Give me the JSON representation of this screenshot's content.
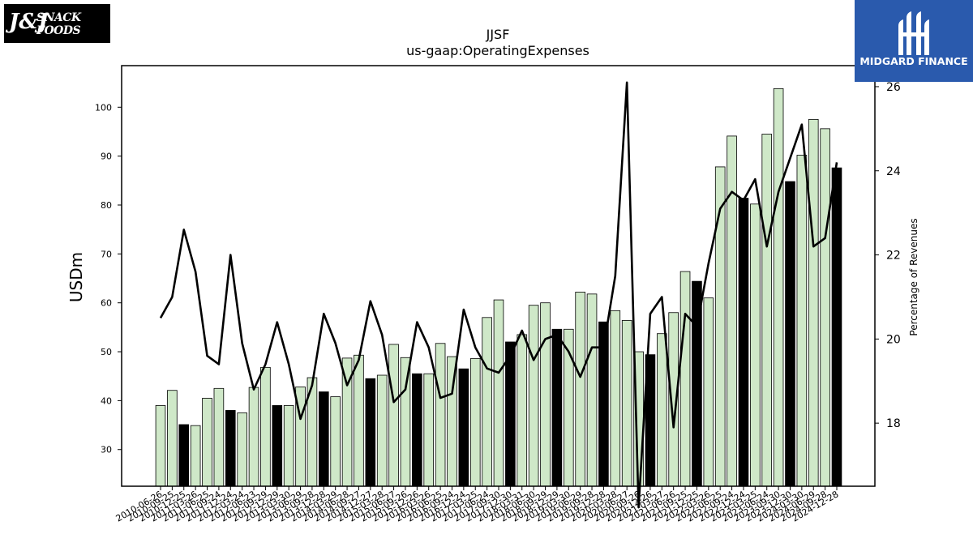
{
  "logos": {
    "left_brand": "SNACK FOODS",
    "left_mark": "J&J",
    "right_name": "MIDGARD FINANCE"
  },
  "colors": {
    "bar_light": "#cfe8c8",
    "bar_dark": "#000000",
    "line": "#000000",
    "logo_right_bg": "#2a5aad"
  },
  "chart_data": {
    "type": "bar",
    "title": "JJSF",
    "subtitle": "us-gaap:OperatingExpenses",
    "ylabel": "USDm",
    "y2label": "Percentage of Revenues",
    "ylim": [
      22.5,
      108.5
    ],
    "y2lim": [
      16.5,
      26.5
    ],
    "yticks": [
      30,
      40,
      50,
      60,
      70,
      80,
      90,
      100
    ],
    "y2ticks": [
      18,
      20,
      22,
      24,
      26
    ],
    "grid": false,
    "categories": [
      "2010-06-26",
      "2010-09-25",
      "2010-12-25",
      "2011-03-26",
      "2011-06-25",
      "2011-09-24",
      "2011-12-24",
      "2012-03-24",
      "2012-06-23",
      "2012-09-29",
      "2012-12-29",
      "2013-03-30",
      "2013-06-29",
      "2013-09-28",
      "2013-12-28",
      "2014-03-29",
      "2014-06-28",
      "2014-09-27",
      "2014-12-27",
      "2015-03-28",
      "2015-06-27",
      "2015-09-26",
      "2015-12-26",
      "2016-03-26",
      "2016-06-25",
      "2016-09-24",
      "2016-12-24",
      "2017-03-25",
      "2017-06-24",
      "2017-09-30",
      "2017-12-30",
      "2018-03-31",
      "2018-06-30",
      "2018-09-29",
      "2018-12-29",
      "2019-03-30",
      "2019-06-29",
      "2019-09-28",
      "2019-12-28",
      "2020-03-28",
      "2020-06-27",
      "2020-09-26",
      "2020-12-26",
      "2021-03-27",
      "2021-06-26",
      "2021-09-25",
      "2021-12-25",
      "2022-03-26",
      "2022-06-25",
      "2022-09-24",
      "2022-12-24",
      "2023-03-25",
      "2023-06-24",
      "2023-09-30",
      "2023-12-30",
      "2024-03-30",
      "2024-06-29",
      "2024-09-28",
      "2024-12-28"
    ],
    "series": [
      {
        "type": "bar",
        "values": [
          39.0,
          42.1,
          35.1,
          34.9,
          40.5,
          42.5,
          38.0,
          37.5,
          42.7,
          46.8,
          39.0,
          39.0,
          42.8,
          44.7,
          41.8,
          40.8,
          48.7,
          49.3,
          44.5,
          45.2,
          51.5,
          48.8,
          45.5,
          45.5,
          51.7,
          49.0,
          46.5,
          48.6,
          57.0,
          60.6,
          52.0,
          53.5,
          59.5,
          60.0,
          54.6,
          54.6,
          62.2,
          61.8,
          56.1,
          58.4,
          56.4,
          50.0,
          49.4,
          53.7,
          58.0,
          66.4,
          64.4,
          61.0,
          87.8,
          94.1,
          81.4,
          80.2,
          94.5,
          103.8,
          84.8,
          90.2,
          97.5,
          95.6,
          87.6
        ],
        "highlight": [
          false,
          false,
          true,
          false,
          false,
          false,
          true,
          false,
          false,
          false,
          true,
          false,
          false,
          false,
          true,
          false,
          false,
          false,
          true,
          false,
          false,
          false,
          true,
          false,
          false,
          false,
          true,
          false,
          false,
          false,
          true,
          false,
          false,
          false,
          true,
          false,
          false,
          false,
          true,
          false,
          false,
          false,
          true,
          false,
          false,
          false,
          true,
          false,
          false,
          false,
          true,
          false,
          false,
          false,
          true,
          false,
          false,
          false,
          true
        ]
      },
      {
        "type": "line",
        "axis": "right",
        "values": [
          20.5,
          21.0,
          22.6,
          21.6,
          19.6,
          19.4,
          22.0,
          19.9,
          18.8,
          19.4,
          20.4,
          19.4,
          18.1,
          18.9,
          20.6,
          19.9,
          18.9,
          19.5,
          20.9,
          20.1,
          18.5,
          18.8,
          20.4,
          19.8,
          18.6,
          18.7,
          20.7,
          19.8,
          19.3,
          19.2,
          19.6,
          20.2,
          19.5,
          20.0,
          20.1,
          19.7,
          19.1,
          19.8,
          19.8,
          21.5,
          26.1,
          16.0,
          20.6,
          21.0,
          17.9,
          20.6,
          20.3,
          21.8,
          23.1,
          23.5,
          23.3,
          23.8,
          22.2,
          23.5,
          24.3,
          25.1,
          22.2,
          22.4,
          24.2
        ]
      }
    ]
  }
}
